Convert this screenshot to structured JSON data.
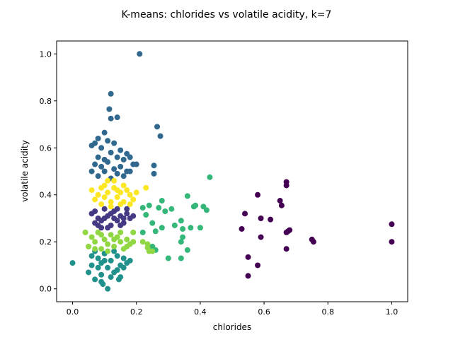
{
  "chart_data": {
    "type": "scatter",
    "title": "K-means: chlorides vs volatile acidity, k=7",
    "xlabel": "chlorides",
    "ylabel": "volatile acidity",
    "xlim": [
      -0.05,
      1.05
    ],
    "ylim": [
      -0.055,
      1.055
    ],
    "xticks": [
      0.0,
      0.2,
      0.4,
      0.6,
      0.8,
      1.0
    ],
    "yticks": [
      0.0,
      0.2,
      0.4,
      0.6,
      0.8,
      1.0
    ],
    "grid": false,
    "legend": "none",
    "series": [
      {
        "color": "#440154",
        "points": [
          [
            0.54,
            0.32
          ],
          [
            0.53,
            0.255
          ],
          [
            0.55,
            0.135
          ],
          [
            0.55,
            0.055
          ],
          [
            0.58,
            0.4
          ],
          [
            0.58,
            0.1
          ],
          [
            0.59,
            0.3
          ],
          [
            0.59,
            0.22
          ],
          [
            0.62,
            0.295
          ],
          [
            0.65,
            0.375
          ],
          [
            0.655,
            0.355
          ],
          [
            0.67,
            0.44
          ],
          [
            0.67,
            0.455
          ],
          [
            0.67,
            0.24
          ],
          [
            0.67,
            0.17
          ],
          [
            0.675,
            0.245
          ],
          [
            0.68,
            0.25
          ],
          [
            0.75,
            0.21
          ],
          [
            0.755,
            0.2
          ],
          [
            1.0,
            0.275
          ],
          [
            1.0,
            0.2
          ]
        ]
      },
      {
        "color": "#443983",
        "points": [
          [
            0.06,
            0.32
          ],
          [
            0.07,
            0.28
          ],
          [
            0.08,
            0.3
          ],
          [
            0.09,
            0.26
          ],
          [
            0.1,
            0.34
          ],
          [
            0.11,
            0.31
          ],
          [
            0.12,
            0.27
          ],
          [
            0.13,
            0.33
          ],
          [
            0.14,
            0.29
          ],
          [
            0.15,
            0.31
          ],
          [
            0.16,
            0.28
          ],
          [
            0.17,
            0.32
          ],
          [
            0.18,
            0.3
          ],
          [
            0.07,
            0.33
          ],
          [
            0.09,
            0.29
          ],
          [
            0.11,
            0.26
          ],
          [
            0.13,
            0.3
          ],
          [
            0.15,
            0.27
          ],
          [
            0.17,
            0.34
          ],
          [
            0.19,
            0.31
          ],
          [
            0.08,
            0.27
          ],
          [
            0.1,
            0.3
          ],
          [
            0.12,
            0.32
          ],
          [
            0.14,
            0.34
          ],
          [
            0.16,
            0.3
          ]
        ]
      },
      {
        "color": "#31688e",
        "points": [
          [
            0.21,
            1.0
          ],
          [
            0.12,
            0.83
          ],
          [
            0.115,
            0.765
          ],
          [
            0.12,
            0.725
          ],
          [
            0.14,
            0.73
          ],
          [
            0.265,
            0.69
          ],
          [
            0.275,
            0.65
          ],
          [
            0.08,
            0.64
          ],
          [
            0.1,
            0.665
          ],
          [
            0.07,
            0.62
          ],
          [
            0.06,
            0.61
          ],
          [
            0.09,
            0.6
          ],
          [
            0.11,
            0.63
          ],
          [
            0.13,
            0.62
          ],
          [
            0.15,
            0.59
          ],
          [
            0.17,
            0.575
          ],
          [
            0.08,
            0.56
          ],
          [
            0.1,
            0.55
          ],
          [
            0.12,
            0.58
          ],
          [
            0.14,
            0.56
          ],
          [
            0.16,
            0.55
          ],
          [
            0.18,
            0.56
          ],
          [
            0.07,
            0.53
          ],
          [
            0.09,
            0.52
          ],
          [
            0.11,
            0.54
          ],
          [
            0.13,
            0.51
          ],
          [
            0.15,
            0.52
          ],
          [
            0.17,
            0.5
          ],
          [
            0.19,
            0.53
          ],
          [
            0.06,
            0.5
          ],
          [
            0.08,
            0.48
          ],
          [
            0.1,
            0.5
          ],
          [
            0.12,
            0.47
          ],
          [
            0.14,
            0.49
          ],
          [
            0.16,
            0.48
          ],
          [
            0.18,
            0.5
          ],
          [
            0.2,
            0.53
          ],
          [
            0.255,
            0.525
          ],
          [
            0.255,
            0.49
          ]
        ]
      },
      {
        "color": "#21918c",
        "points": [
          [
            0.0,
            0.11
          ],
          [
            0.05,
            0.07
          ],
          [
            0.06,
            0.1
          ],
          [
            0.07,
            0.04
          ],
          [
            0.08,
            0.13
          ],
          [
            0.09,
            0.06
          ],
          [
            0.1,
            0.15
          ],
          [
            0.11,
            0.09
          ],
          [
            0.12,
            0.12
          ],
          [
            0.13,
            0.07
          ],
          [
            0.14,
            0.14
          ],
          [
            0.15,
            0.1
          ],
          [
            0.16,
            0.13
          ],
          [
            0.17,
            0.11
          ],
          [
            0.09,
            0.03
          ],
          [
            0.095,
            0.02
          ],
          [
            0.11,
            0.0
          ],
          [
            0.145,
            0.04
          ],
          [
            0.07,
            0.16
          ],
          [
            0.08,
            0.09
          ],
          [
            0.1,
            0.12
          ],
          [
            0.12,
            0.05
          ],
          [
            0.14,
            0.08
          ],
          [
            0.16,
            0.09
          ],
          [
            0.18,
            0.12
          ],
          [
            0.06,
            0.14
          ],
          [
            0.09,
            0.11
          ],
          [
            0.13,
            0.16
          ],
          [
            0.15,
            0.05
          ]
        ]
      },
      {
        "color": "#35b779",
        "points": [
          [
            0.43,
            0.475
          ],
          [
            0.41,
            0.35
          ],
          [
            0.42,
            0.335
          ],
          [
            0.36,
            0.395
          ],
          [
            0.38,
            0.35
          ],
          [
            0.385,
            0.355
          ],
          [
            0.4,
            0.26
          ],
          [
            0.22,
            0.345
          ],
          [
            0.23,
            0.315
          ],
          [
            0.24,
            0.355
          ],
          [
            0.25,
            0.28
          ],
          [
            0.26,
            0.245
          ],
          [
            0.27,
            0.345
          ],
          [
            0.28,
            0.375
          ],
          [
            0.29,
            0.33
          ],
          [
            0.31,
            0.34
          ],
          [
            0.32,
            0.27
          ],
          [
            0.34,
            0.29
          ],
          [
            0.345,
            0.255
          ],
          [
            0.37,
            0.26
          ],
          [
            0.22,
            0.24
          ],
          [
            0.25,
            0.18
          ],
          [
            0.26,
            0.165
          ],
          [
            0.3,
            0.13
          ],
          [
            0.34,
            0.13
          ],
          [
            0.34,
            0.2
          ],
          [
            0.345,
            0.22
          ],
          [
            0.36,
            0.165
          ],
          [
            0.28,
            0.26
          ]
        ]
      },
      {
        "color": "#90d743",
        "points": [
          [
            0.04,
            0.24
          ],
          [
            0.05,
            0.18
          ],
          [
            0.06,
            0.22
          ],
          [
            0.07,
            0.2
          ],
          [
            0.08,
            0.24
          ],
          [
            0.09,
            0.17
          ],
          [
            0.1,
            0.21
          ],
          [
            0.11,
            0.19
          ],
          [
            0.12,
            0.23
          ],
          [
            0.13,
            0.18
          ],
          [
            0.14,
            0.22
          ],
          [
            0.15,
            0.2
          ],
          [
            0.16,
            0.17
          ],
          [
            0.17,
            0.21
          ],
          [
            0.18,
            0.19
          ],
          [
            0.19,
            0.24
          ],
          [
            0.22,
            0.2
          ],
          [
            0.235,
            0.19
          ],
          [
            0.235,
            0.175
          ],
          [
            0.24,
            0.16
          ],
          [
            0.25,
            0.16
          ],
          [
            0.07,
            0.17
          ],
          [
            0.09,
            0.23
          ],
          [
            0.11,
            0.16
          ],
          [
            0.13,
            0.21
          ],
          [
            0.15,
            0.24
          ],
          [
            0.17,
            0.18
          ],
          [
            0.19,
            0.2
          ]
        ]
      },
      {
        "color": "#fde725",
        "points": [
          [
            0.06,
            0.42
          ],
          [
            0.07,
            0.38
          ],
          [
            0.08,
            0.4
          ],
          [
            0.09,
            0.36
          ],
          [
            0.1,
            0.44
          ],
          [
            0.11,
            0.41
          ],
          [
            0.12,
            0.37
          ],
          [
            0.13,
            0.43
          ],
          [
            0.14,
            0.39
          ],
          [
            0.15,
            0.41
          ],
          [
            0.16,
            0.37
          ],
          [
            0.17,
            0.42
          ],
          [
            0.18,
            0.4
          ],
          [
            0.19,
            0.38
          ],
          [
            0.2,
            0.41
          ],
          [
            0.11,
            0.46
          ],
          [
            0.13,
            0.46
          ],
          [
            0.09,
            0.43
          ],
          [
            0.12,
            0.35
          ],
          [
            0.14,
            0.42
          ],
          [
            0.16,
            0.44
          ],
          [
            0.23,
            0.43
          ],
          [
            0.18,
            0.36
          ],
          [
            0.1,
            0.39
          ],
          [
            0.15,
            0.36
          ]
        ]
      }
    ]
  }
}
